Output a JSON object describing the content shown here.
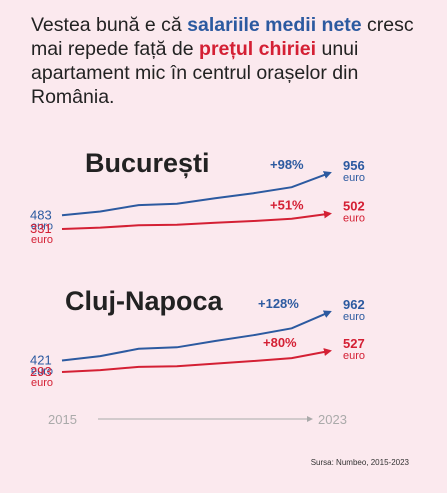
{
  "headline": {
    "part1": "Vestea bună e că ",
    "part2": "salariile medii nete",
    "part3": " cresc mai repede față de ",
    "part4": "prețul chiriei",
    "part5": " unui apartament mic în centrul orașelor din România."
  },
  "source": "Sursa: Numbeo, 2015-2023",
  "colors": {
    "salary": "#2c5aa0",
    "rent": "#d42034",
    "axis": "#aaaaaa",
    "background": "#fbe9ee"
  },
  "chart_data": [
    {
      "type": "line",
      "title": "București",
      "x": [
        2015,
        2023
      ],
      "series": [
        {
          "key": "salary",
          "start": 483,
          "end": 956,
          "start_label": "483",
          "end_label": "956",
          "unit": "euro",
          "change": "+98%"
        },
        {
          "key": "rent",
          "start": 331,
          "end": 502,
          "start_label": "331",
          "end_label": "502",
          "unit": "euro",
          "change": "+51%"
        }
      ]
    },
    {
      "type": "line",
      "title": "Cluj-Napoca",
      "x": [
        2015,
        2023
      ],
      "series": [
        {
          "key": "salary",
          "start": 421,
          "end": 962,
          "start_label": "421",
          "end_label": "962",
          "unit": "euro",
          "change": "+128%"
        },
        {
          "key": "rent",
          "start": 293,
          "end": 527,
          "start_label": "293",
          "end_label": "527",
          "unit": "euro",
          "change": "+80%"
        }
      ]
    }
  ],
  "x_axis": {
    "start": "2015",
    "end": "2023"
  }
}
